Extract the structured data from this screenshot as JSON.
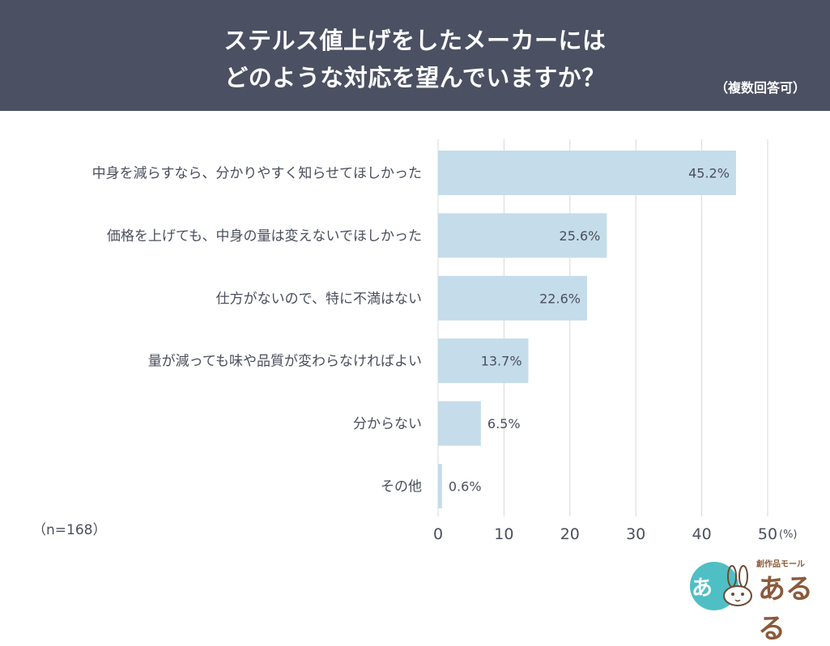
{
  "header": {
    "title_line1": "ステルス値上げをしたメーカーには",
    "title_line2": "どのような対応を望んでいますか？",
    "note": "（複数回答可）"
  },
  "sample_note": "（n=168）",
  "logo": {
    "brand": "あるる",
    "tagline": "創作品モール",
    "mark": "あ"
  },
  "colors": {
    "header_bg": "#4b5062",
    "bar": "#c5dcea",
    "grid": "#d8d8d8",
    "text": "#4a4f5c"
  },
  "chart_data": {
    "type": "bar",
    "orientation": "horizontal",
    "categories": [
      "中身を減らすなら、分かりやすく知らせてほしかった",
      "価格を上げても、中身の量は変えないでほしかった",
      "仕方がないので、特に不満はない",
      "量が減っても味や品質が変わらなければよい",
      "分からない",
      "その他"
    ],
    "values": [
      45.2,
      25.6,
      22.6,
      13.7,
      6.5,
      0.6
    ],
    "value_labels": [
      "45.2%",
      "25.6%",
      "22.6%",
      "13.7%",
      "6.5%",
      "0.6%"
    ],
    "xlim": [
      0,
      50
    ],
    "xticks": [
      0,
      10,
      20,
      30,
      40,
      50
    ],
    "x_unit": "(%)",
    "grid": true
  }
}
